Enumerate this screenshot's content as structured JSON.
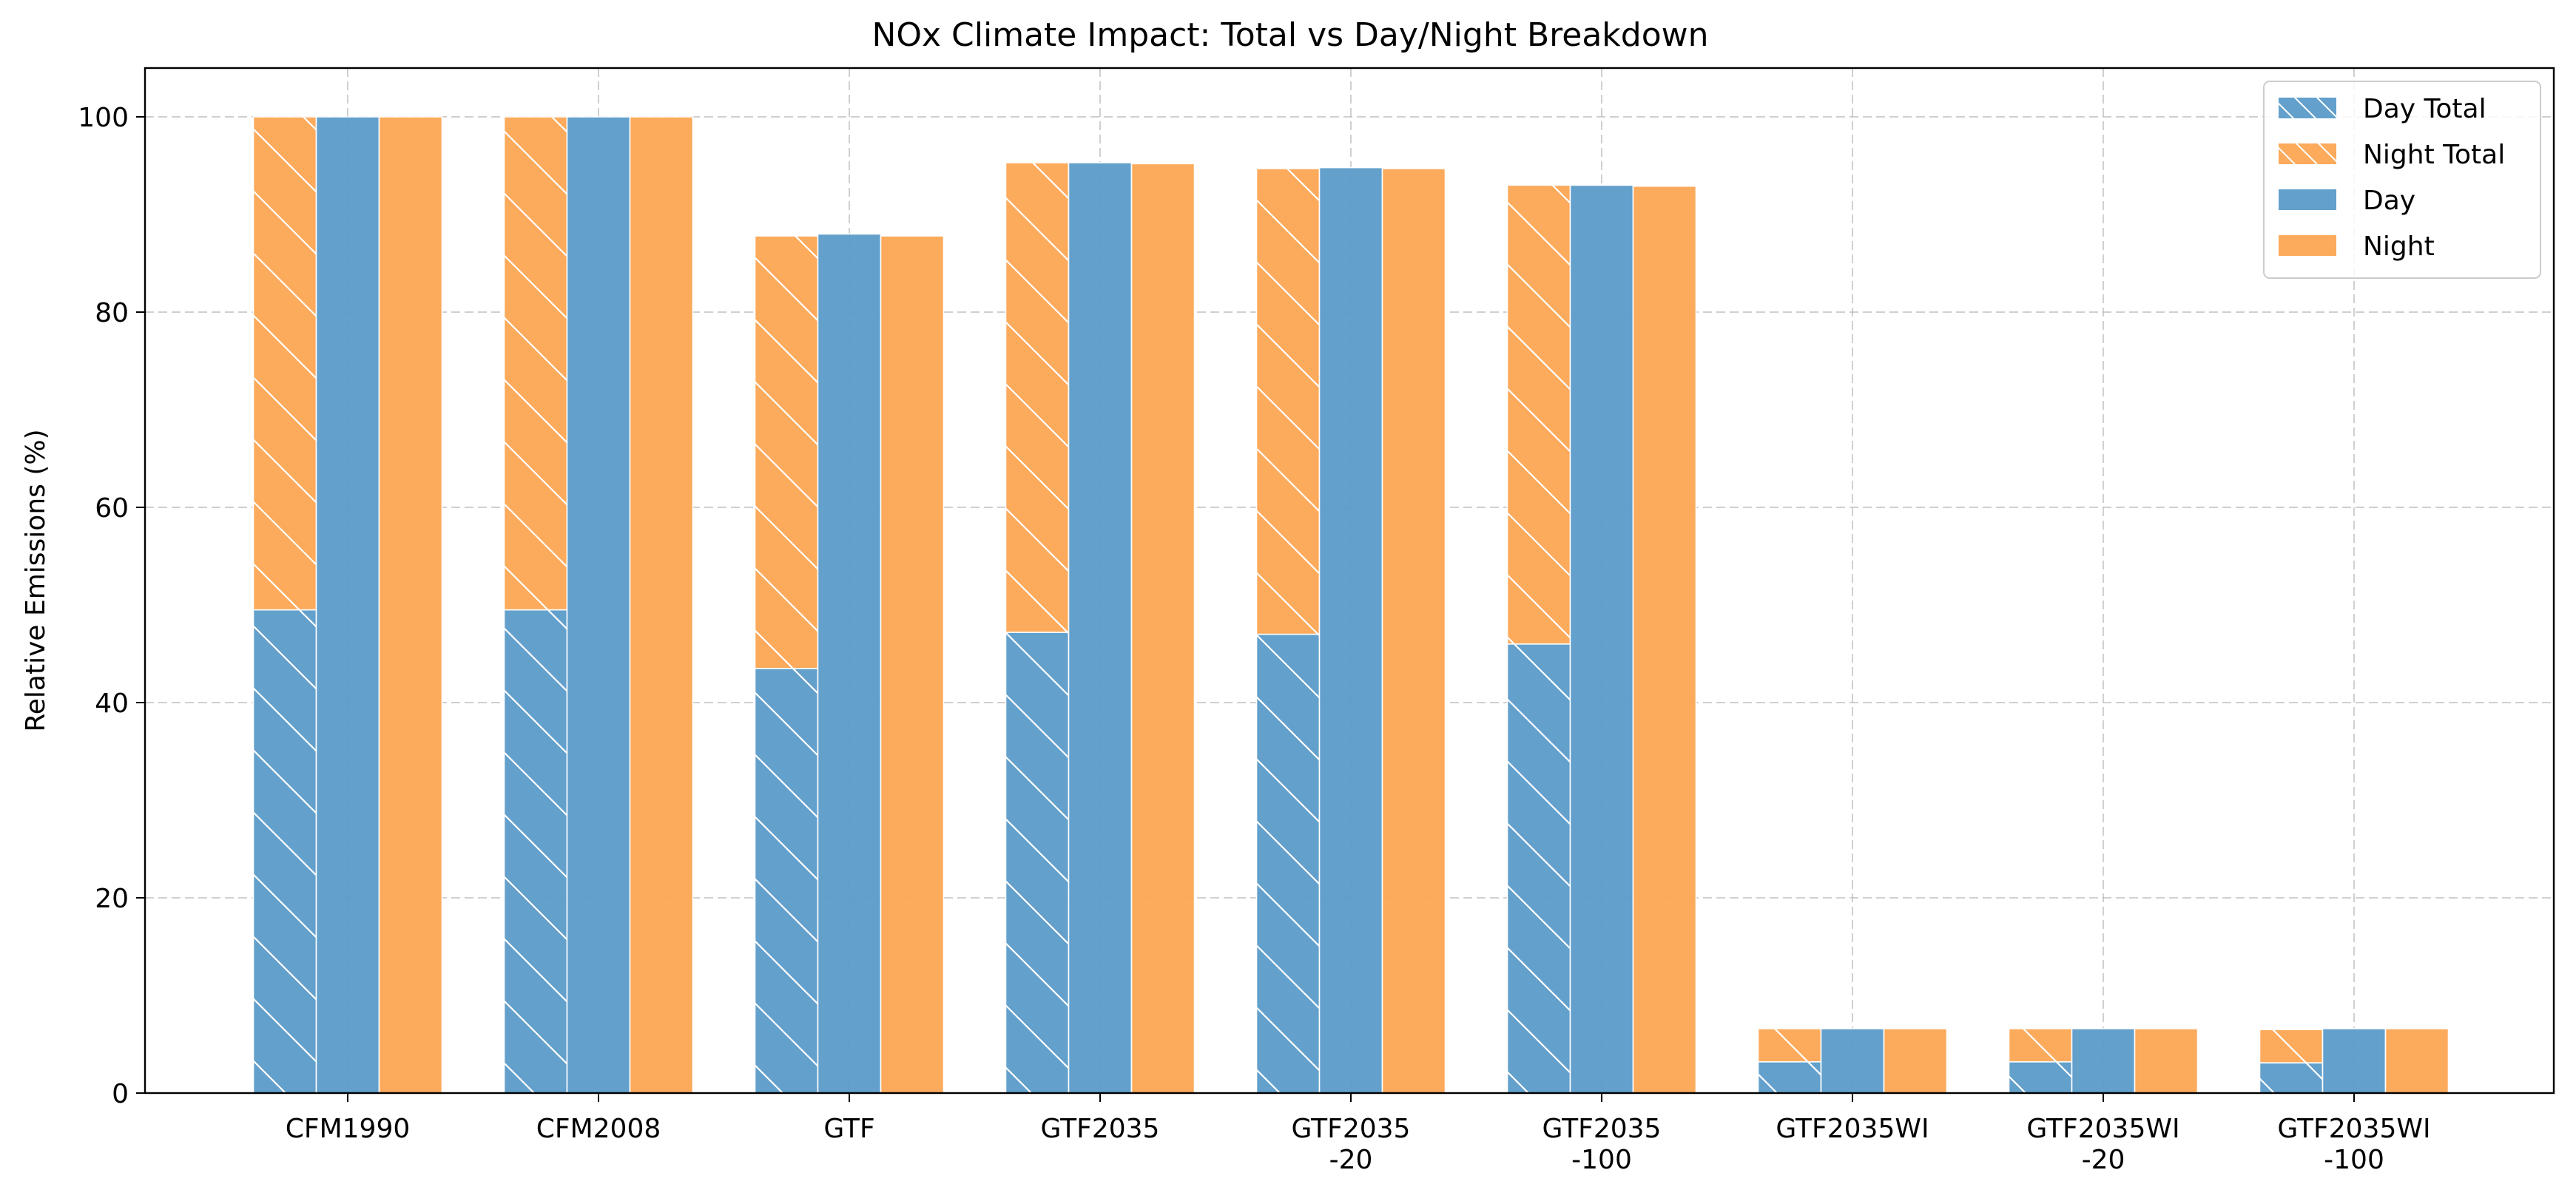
{
  "chart_data": {
    "type": "bar",
    "title": "NOx Climate Impact: Total vs Day/Night Breakdown",
    "xlabel": "",
    "ylabel": "Relative Emissions (%)",
    "ylim": [
      0,
      105
    ],
    "yticks": [
      0,
      20,
      40,
      60,
      80,
      100
    ],
    "grid": true,
    "legend_position": "top-right",
    "categories": [
      "CFM1990",
      "CFM2008",
      "GTF",
      "GTF2035",
      "GTF2035\n-20",
      "GTF2035\n-100",
      "GTF2035WI",
      "GTF2035WI\n-20",
      "GTF2035WI\n-100"
    ],
    "series": [
      {
        "name": "Day Total",
        "group": "total",
        "stack": "bottom",
        "hatch": true,
        "color": "#5b9bc9",
        "values": [
          49.5,
          49.5,
          43.5,
          47.2,
          47.0,
          46.0,
          3.2,
          3.2,
          3.1
        ]
      },
      {
        "name": "Night Total",
        "group": "total",
        "stack": "top",
        "hatch": true,
        "color": "#fca553",
        "values": [
          50.5,
          50.5,
          44.3,
          48.1,
          47.7,
          47.0,
          3.4,
          3.4,
          3.4
        ]
      },
      {
        "name": "Day",
        "group": "day",
        "hatch": false,
        "color": "#5b9bc9",
        "values": [
          100,
          100,
          88.0,
          95.3,
          94.8,
          93.0,
          6.6,
          6.6,
          6.6
        ]
      },
      {
        "name": "Night",
        "group": "night",
        "hatch": false,
        "color": "#fca553",
        "values": [
          100,
          100,
          87.8,
          95.2,
          94.7,
          92.9,
          6.6,
          6.6,
          6.6
        ]
      }
    ]
  }
}
